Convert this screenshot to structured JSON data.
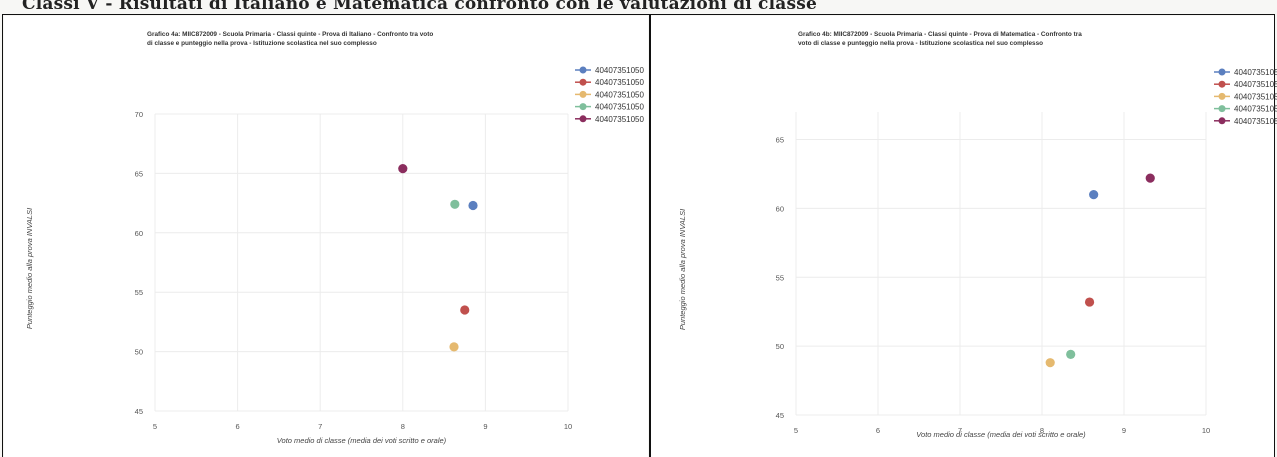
{
  "header": {
    "title": "Classi V - Risultati di Italiano e Matematica confronto con le valutazioni di classe"
  },
  "colors": {
    "blue": "#5b7fbf",
    "red": "#c0504d",
    "yellow": "#e5b96f",
    "green": "#7fbf9c",
    "purple": "#8b2d5e"
  },
  "chart_data": [
    {
      "type": "scatter",
      "title_lines": [
        "Grafico 4a: MIIC872009 - Scuola Primaria - Classi quinte - Prova di Italiano - Confronto tra voto",
        "di classe e punteggio nella prova - Istituzione scolastica nel suo complesso"
      ],
      "xlabel": "Voto medio di classe (media dei voti scritto e orale)",
      "ylabel": "Punteggio medio alla prova INVALSI",
      "xlim": [
        5,
        10
      ],
      "ylim": [
        45,
        70
      ],
      "xticks": [
        "5",
        "6",
        "7",
        "8",
        "9",
        "10"
      ],
      "yticks": [
        "45",
        "50",
        "55",
        "60",
        "65",
        "70"
      ],
      "legend_position": "top-right",
      "series": [
        {
          "name": "40407351050",
          "color": "#5b7fbf",
          "points": [
            [
              8.85,
              62.3
            ]
          ]
        },
        {
          "name": "40407351050",
          "color": "#c0504d",
          "points": [
            [
              8.75,
              53.5
            ]
          ]
        },
        {
          "name": "40407351050",
          "color": "#e5b96f",
          "points": [
            [
              8.62,
              50.4
            ]
          ]
        },
        {
          "name": "40407351050",
          "color": "#7fbf9c",
          "points": [
            [
              8.63,
              62.4
            ]
          ]
        },
        {
          "name": "40407351050",
          "color": "#8b2d5e",
          "points": [
            [
              8.0,
              65.4
            ]
          ]
        }
      ]
    },
    {
      "type": "scatter",
      "title_lines": [
        "Grafico 4b: MIIC872009 - Scuola Primaria - Classi quinte - Prova di Matematica - Confronto tra",
        "voto di classe e punteggio nella prova - Istituzione scolastica nel suo complesso"
      ],
      "xlabel": "Voto medio di classe (media dei voti scritto e orale)",
      "ylabel": "Punteggio medio alla prova INVALSI",
      "xlim": [
        5,
        10
      ],
      "ylim": [
        45,
        67
      ],
      "xticks": [
        "5",
        "6",
        "7",
        "8",
        "9",
        "10"
      ],
      "yticks": [
        "45",
        "50",
        "55",
        "60",
        "65"
      ],
      "legend_position": "top-right",
      "series": [
        {
          "name": "4040735105",
          "color": "#5b7fbf",
          "points": [
            [
              8.63,
              61.0
            ]
          ]
        },
        {
          "name": "4040735105",
          "color": "#c0504d",
          "points": [
            [
              8.58,
              53.2
            ]
          ]
        },
        {
          "name": "4040735105",
          "color": "#e5b96f",
          "points": [
            [
              8.1,
              48.8
            ]
          ]
        },
        {
          "name": "4040735105",
          "color": "#7fbf9c",
          "points": [
            [
              8.35,
              49.4
            ]
          ]
        },
        {
          "name": "4040735105",
          "color": "#8b2d5e",
          "points": [
            [
              9.32,
              62.2
            ]
          ]
        }
      ]
    }
  ]
}
